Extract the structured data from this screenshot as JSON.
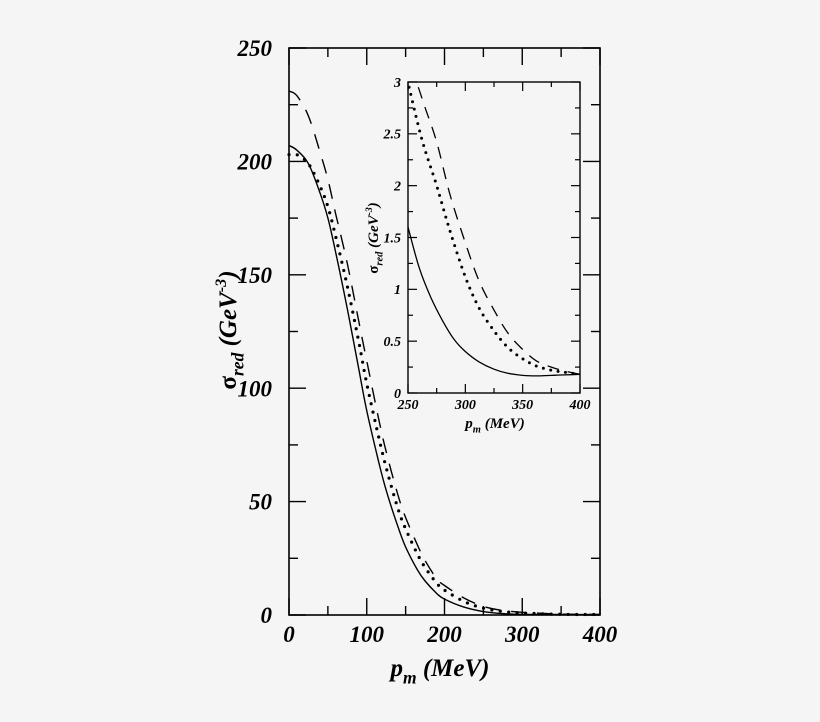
{
  "chart_data": [
    {
      "id": "main",
      "type": "line",
      "title": "",
      "xlabel": "p_m (MeV)",
      "xlabel_main": "p",
      "xlabel_sub": "m",
      "xlabel_unit": "(MeV)",
      "ylabel": "σ_red (GeV^-3)",
      "ylabel_main": "σ",
      "ylabel_sub": "red",
      "ylabel_unit": "(GeV",
      "ylabel_sup": "-3",
      "xlim": [
        0,
        400
      ],
      "ylim": [
        0,
        250
      ],
      "xticks": [
        "0",
        "100",
        "200",
        "300",
        "400"
      ],
      "yticks": [
        "0",
        "50",
        "100",
        "150",
        "200",
        "250"
      ],
      "grid": false,
      "legend": null,
      "series": [
        {
          "name": "solid",
          "style": "solid",
          "x": [
            0,
            10,
            25,
            40,
            50,
            60,
            75,
            90,
            100,
            115,
            125,
            140,
            150,
            165,
            175,
            190,
            200,
            225,
            250,
            275,
            300,
            350,
            400
          ],
          "values": [
            207,
            205,
            199,
            186,
            175,
            160,
            135,
            108,
            90,
            68,
            55,
            39,
            30,
            20,
            15,
            9.5,
            7,
            3.5,
            1.5,
            0.6,
            0.3,
            0.2,
            0.2
          ]
        },
        {
          "name": "dotted",
          "style": "dotted",
          "x": [
            0,
            10,
            25,
            40,
            50,
            60,
            75,
            90,
            100,
            115,
            125,
            140,
            150,
            165,
            175,
            190,
            200,
            225,
            250,
            275,
            300,
            350,
            400
          ],
          "values": [
            203,
            203,
            199,
            189,
            180,
            167,
            145,
            120,
            102,
            79,
            65,
            47,
            38,
            27,
            21,
            14,
            11,
            6,
            3,
            1.6,
            0.9,
            0.3,
            0.2
          ]
        },
        {
          "name": "dashed",
          "style": "dashed",
          "x": [
            0,
            10,
            25,
            40,
            50,
            60,
            75,
            90,
            100,
            115,
            125,
            140,
            150,
            165,
            175,
            190,
            200,
            225,
            250,
            275,
            300,
            350,
            400
          ],
          "values": [
            231,
            229,
            220,
            204,
            192,
            177,
            155,
            129,
            112,
            87,
            72,
            53,
            43,
            31,
            24,
            16,
            13,
            7.5,
            3.8,
            2,
            1.2,
            0.4,
            0.2
          ]
        }
      ]
    },
    {
      "id": "inset",
      "type": "line",
      "title": "",
      "xlabel": "p_m (MeV)",
      "xlabel_main": "p",
      "xlabel_sub": "m",
      "xlabel_unit": "(MeV)",
      "ylabel": "σ_red (GeV^-3)",
      "ylabel_main": "σ",
      "ylabel_sub": "red",
      "ylabel_unit": "(GeV",
      "ylabel_sup": "-3",
      "xlim": [
        250,
        400
      ],
      "ylim": [
        0,
        3
      ],
      "xticks": [
        "250",
        "300",
        "350",
        "400"
      ],
      "yticks": [
        "0",
        "0.5",
        "1",
        "1.5",
        "2",
        "2.5",
        "3"
      ],
      "grid": false,
      "legend": null,
      "series": [
        {
          "name": "solid",
          "style": "solid",
          "x": [
            250,
            260,
            270,
            280,
            290,
            300,
            312,
            325,
            337,
            350,
            362,
            375,
            387,
            400
          ],
          "values": [
            1.6,
            1.2,
            0.92,
            0.7,
            0.52,
            0.4,
            0.3,
            0.23,
            0.19,
            0.17,
            0.165,
            0.17,
            0.175,
            0.18
          ]
        },
        {
          "name": "dotted",
          "style": "dotted",
          "x": [
            251,
            262,
            275,
            287,
            300,
            312,
            325,
            337,
            350,
            362,
            375,
            387,
            400
          ],
          "values": [
            2.95,
            2.45,
            2.0,
            1.55,
            1.12,
            0.82,
            0.6,
            0.44,
            0.33,
            0.26,
            0.22,
            0.2,
            0.18
          ]
        },
        {
          "name": "dashed",
          "style": "dashed",
          "x": [
            259,
            265,
            275,
            287,
            300,
            312,
            325,
            337,
            350,
            362,
            375,
            387,
            400
          ],
          "values": [
            2.95,
            2.75,
            2.42,
            1.9,
            1.45,
            1.08,
            0.8,
            0.58,
            0.42,
            0.31,
            0.25,
            0.21,
            0.18
          ]
        }
      ]
    }
  ]
}
